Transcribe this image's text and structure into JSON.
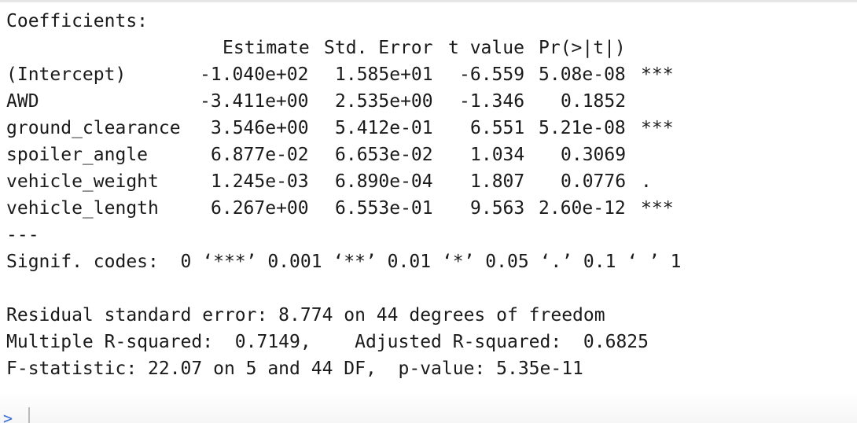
{
  "console": {
    "heading": "Coefficients:",
    "header": {
      "estimate": "Estimate",
      "std_error": "Std. Error",
      "t_value": "t value",
      "p_value": "Pr(>|t|)"
    },
    "rows": [
      {
        "name": "(Intercept)",
        "estimate": "-1.040e+02",
        "std_error": "1.585e+01",
        "t_value": "-6.559",
        "p_value": "5.08e-08",
        "signif": "***"
      },
      {
        "name": "AWD",
        "estimate": "-3.411e+00",
        "std_error": "2.535e+00",
        "t_value": "-1.346",
        "p_value": "0.1852",
        "signif": ""
      },
      {
        "name": "ground_clearance",
        "estimate": "3.546e+00",
        "std_error": "5.412e-01",
        "t_value": "6.551",
        "p_value": "5.21e-08",
        "signif": "***"
      },
      {
        "name": "spoiler_angle",
        "estimate": "6.877e-02",
        "std_error": "6.653e-02",
        "t_value": "1.034",
        "p_value": "0.3069",
        "signif": ""
      },
      {
        "name": "vehicle_weight",
        "estimate": "1.245e-03",
        "std_error": "6.890e-04",
        "t_value": "1.807",
        "p_value": "0.0776",
        "signif": "."
      },
      {
        "name": "vehicle_length",
        "estimate": "6.267e+00",
        "std_error": "6.553e-01",
        "t_value": "9.563",
        "p_value": "2.60e-12",
        "signif": "***"
      }
    ],
    "separator": "---",
    "signif_codes": "Signif. codes:  0 ‘***’ 0.001 ‘**’ 0.01 ‘*’ 0.05 ‘.’ 0.1 ‘ ’ 1",
    "residual_line": "Residual standard error: 8.774 on 44 degrees of freedom",
    "r_squared_line": "Multiple R-squared:  0.7149,\tAdjusted R-squared:  0.6825",
    "f_stat_line": "F-statistic: 22.07 on 5 and 44 DF,  p-value: 5.35e-11",
    "prompt": ">"
  }
}
